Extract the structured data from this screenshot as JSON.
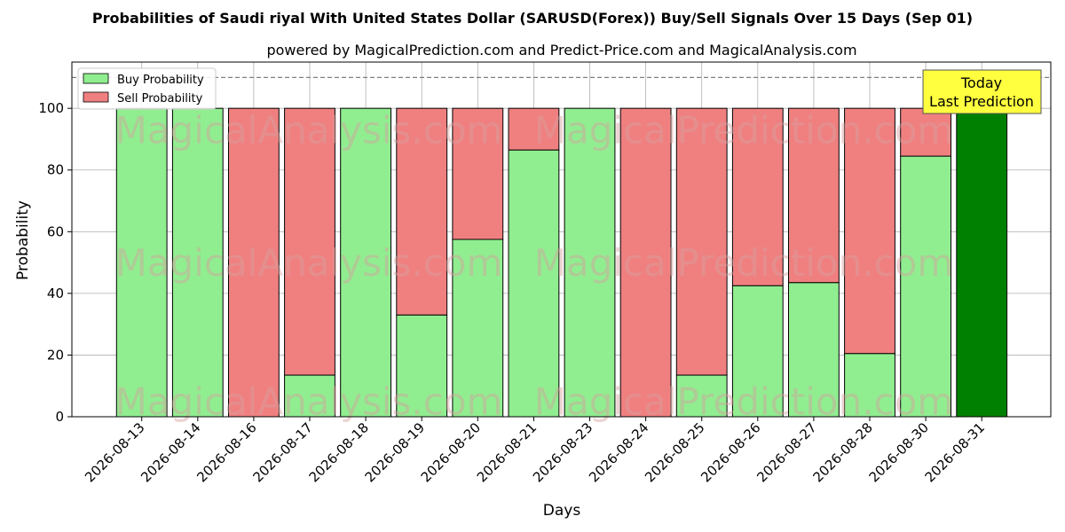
{
  "title": "Probabilities of Saudi riyal With United States Dollar (SARUSD(Forex)) Buy/Sell Signals Over 15 Days (Sep 01)",
  "subtitle": "powered by MagicalPrediction.com and Predict-Price.com and MagicalAnalysis.com",
  "watermarks": [
    "MagicalAnalysis.com",
    "MagicalPrediction.com"
  ],
  "annotation": [
    "Today",
    "Last Prediction"
  ],
  "colors": {
    "buy": "#90ee90",
    "sell": "#f08080",
    "today": "#008000",
    "annotation_bg": "#ffff40",
    "grid": "#b0b0b0"
  },
  "chart_data": {
    "type": "bar",
    "stacked": true,
    "xlabel": "Days",
    "ylabel": "Probability",
    "ylim": [
      0,
      115
    ],
    "yticks": [
      0,
      20,
      40,
      60,
      80,
      100
    ],
    "reference_line": 110,
    "grid": true,
    "legend_position": "top-left",
    "categories": [
      "2026-08-13",
      "2026-08-14",
      "2026-08-16",
      "2026-08-17",
      "2026-08-18",
      "2026-08-19",
      "2026-08-20",
      "2026-08-21",
      "2026-08-23",
      "2026-08-24",
      "2026-08-25",
      "2026-08-26",
      "2026-08-27",
      "2026-08-28",
      "2026-08-30",
      "2026-08-31"
    ],
    "series": [
      {
        "name": "Buy Probability",
        "values": [
          100,
          100,
          0,
          13.5,
          100,
          33,
          57.5,
          86.5,
          100,
          0,
          13.5,
          42.5,
          43.5,
          20.5,
          84.5,
          100
        ]
      },
      {
        "name": "Sell Probability",
        "values": [
          0,
          0,
          100,
          86.5,
          0,
          67,
          42.5,
          13.5,
          0,
          100,
          86.5,
          57.5,
          56.5,
          79.5,
          15.5,
          0
        ]
      }
    ],
    "today_index": 15
  }
}
